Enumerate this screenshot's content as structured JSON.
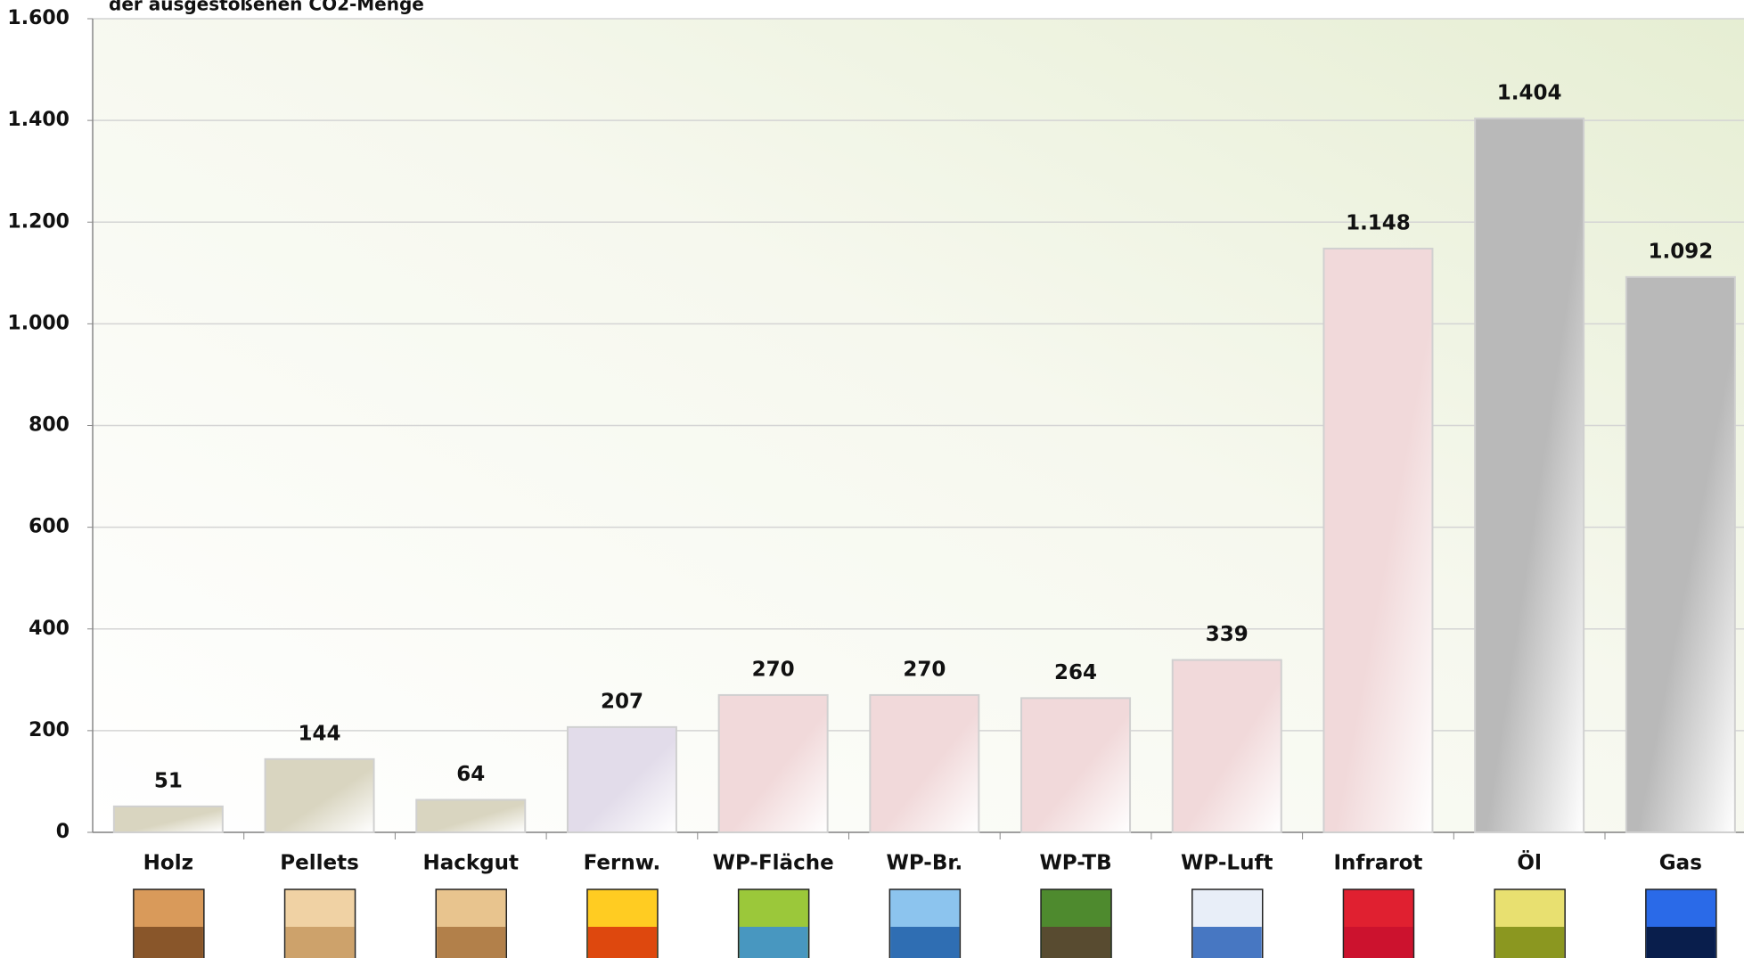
{
  "chart_data": {
    "type": "bar",
    "title": "der ausgestoßenen CO2-Menge",
    "categories": [
      "Holz",
      "Pellets",
      "Hackgut",
      "Fernw.",
      "WP-Fläche",
      "WP-Br.",
      "WP-TB",
      "WP-Luft",
      "Infrarot",
      "Öl",
      "Gas"
    ],
    "values": [
      51,
      144,
      64,
      207,
      270,
      270,
      264,
      339,
      1148,
      1404,
      1092
    ],
    "value_labels": [
      "51",
      "144",
      "64",
      "207",
      "270",
      "270",
      "264",
      "339",
      "1.148",
      "1.404",
      "1.092"
    ],
    "colors": [
      "#d9d5c0",
      "#d9d5c0",
      "#d9d5c0",
      "#e2dcea",
      "#f1d9da",
      "#f1d9da",
      "#f1d9da",
      "#f1d9da",
      "#f1d9da",
      "#b9b9b9",
      "#b9b9b9"
    ],
    "ylim": [
      0,
      1600
    ],
    "yticks": [
      0,
      200,
      400,
      600,
      800,
      {
        "value": 1000,
        "label": "1.000"
      },
      {
        "value": 1200,
        "label": "1.200"
      },
      {
        "value": 1400,
        "label": "1.400"
      },
      {
        "value": 1600,
        "label": "1.600"
      }
    ],
    "grid": true
  }
}
